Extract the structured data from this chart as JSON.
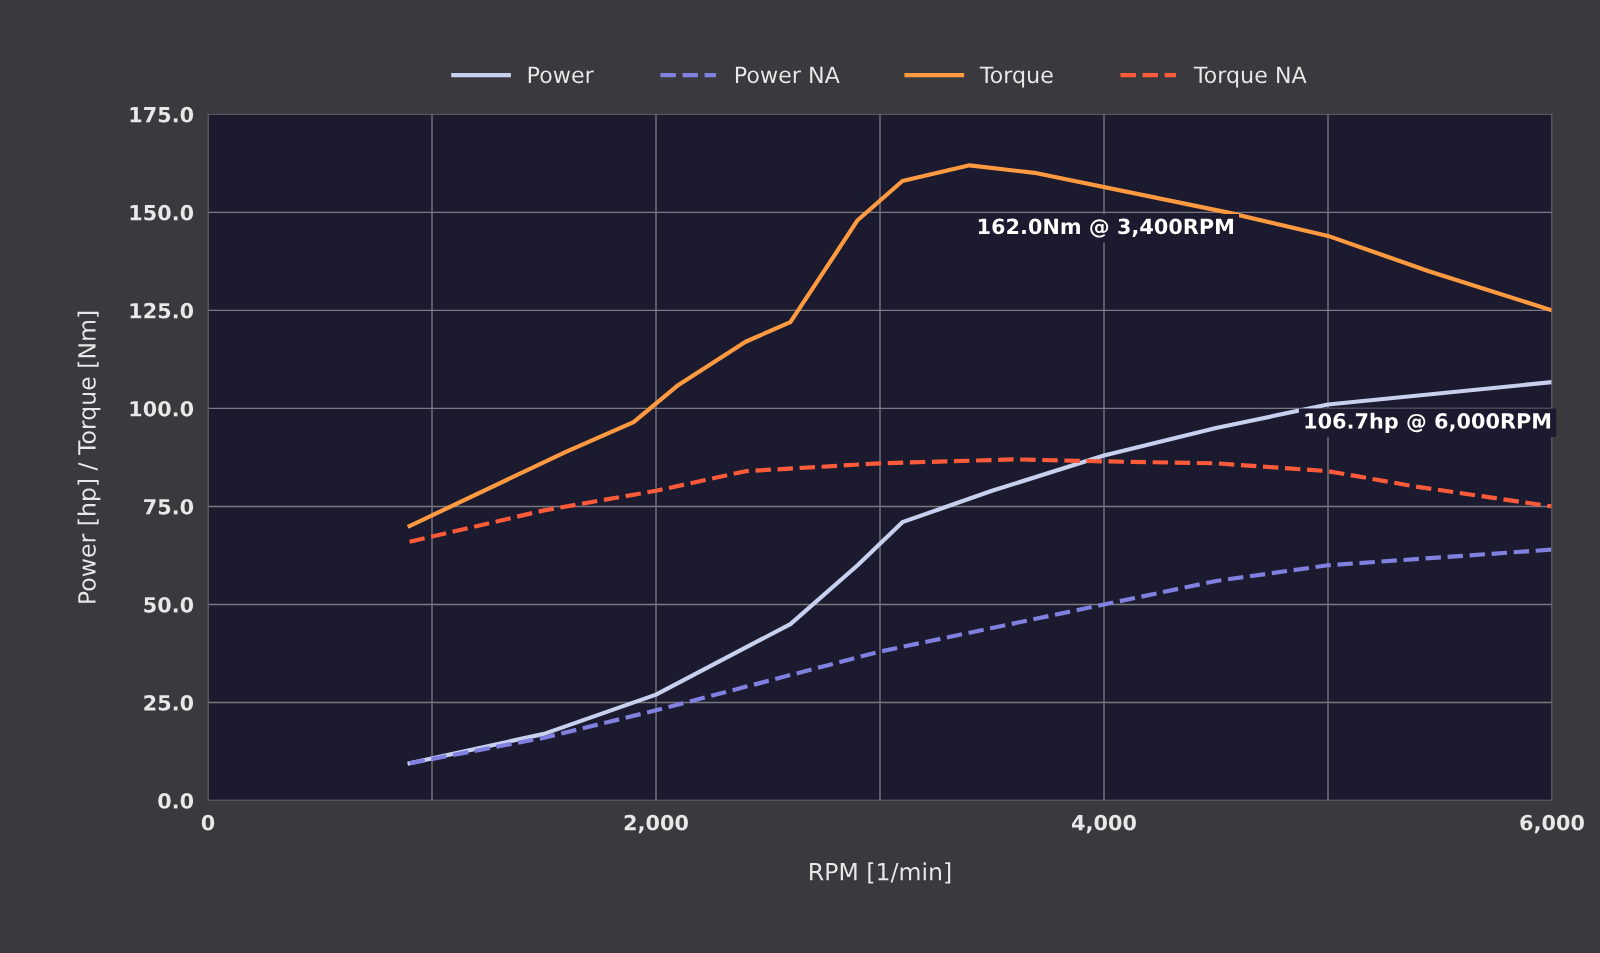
{
  "chart_data": {
    "type": "line",
    "xlabel": "RPM [1/min]",
    "ylabel": "Power [hp] / Torque [Nm]",
    "xlim": [
      0,
      6000
    ],
    "ylim": [
      0,
      175
    ],
    "xticks": [
      0,
      {
        "value": 1000,
        "label": null
      },
      {
        "value": 2000,
        "label": "2,000"
      },
      {
        "value": 3000,
        "label": null
      },
      {
        "value": 4000,
        "label": "4,000"
      },
      {
        "value": 5000,
        "label": null
      },
      {
        "value": 6000,
        "label": "6,000"
      }
    ],
    "yticks": [
      {
        "value": 0,
        "label": "0.0"
      },
      {
        "value": 25,
        "label": "25.0"
      },
      {
        "value": 50,
        "label": "50.0"
      },
      {
        "value": 75,
        "label": "75.0"
      },
      {
        "value": 100,
        "label": "100.0"
      },
      {
        "value": 125,
        "label": "125.0"
      },
      {
        "value": 150,
        "label": "150.0"
      },
      {
        "value": 175,
        "label": "175.0"
      }
    ],
    "grid": true,
    "legend": "top",
    "marker": "none",
    "series": [
      {
        "name": "Power",
        "color": "#c8d0f0",
        "line_style": "solid",
        "x": [
          900,
          1500,
          2000,
          2600,
          2900,
          3100,
          3500,
          4000,
          4500,
          5000,
          6000
        ],
        "values": [
          9.5,
          17,
          27,
          45,
          60,
          71,
          79,
          88,
          95,
          101,
          106.7
        ]
      },
      {
        "name": "Power NA",
        "color": "#8080e0",
        "line_style": "dashed",
        "x": [
          900,
          1500,
          2000,
          2600,
          3000,
          3500,
          4000,
          4500,
          5000,
          6000
        ],
        "values": [
          9.5,
          16,
          23,
          32,
          38,
          44,
          50,
          56,
          60,
          64
        ]
      },
      {
        "name": "Torque",
        "color": "#ff9a40",
        "line_style": "solid",
        "x": [
          900,
          1600,
          1900,
          2100,
          2400,
          2600,
          2900,
          3100,
          3400,
          3700,
          4550,
          5000,
          5450,
          6000
        ],
        "values": [
          70,
          89,
          96.5,
          106,
          117,
          122,
          148,
          158,
          162,
          160,
          150,
          144,
          135,
          125
        ]
      },
      {
        "name": "Torque NA",
        "color": "#ff5a3a",
        "line_style": "dashed",
        "x": [
          900,
          1500,
          2000,
          2400,
          3000,
          3600,
          4000,
          4500,
          5000,
          5400,
          6000
        ],
        "values": [
          66,
          74,
          79,
          84,
          86,
          87,
          86.5,
          86,
          84,
          80,
          75
        ]
      }
    ],
    "annotations": [
      {
        "text": "162.0Nm @ 3,400RPM",
        "x": 3400,
        "y": 162
      },
      {
        "text": "106.7hp @ 6,000RPM",
        "x": 6000,
        "y": 106.7
      }
    ]
  }
}
